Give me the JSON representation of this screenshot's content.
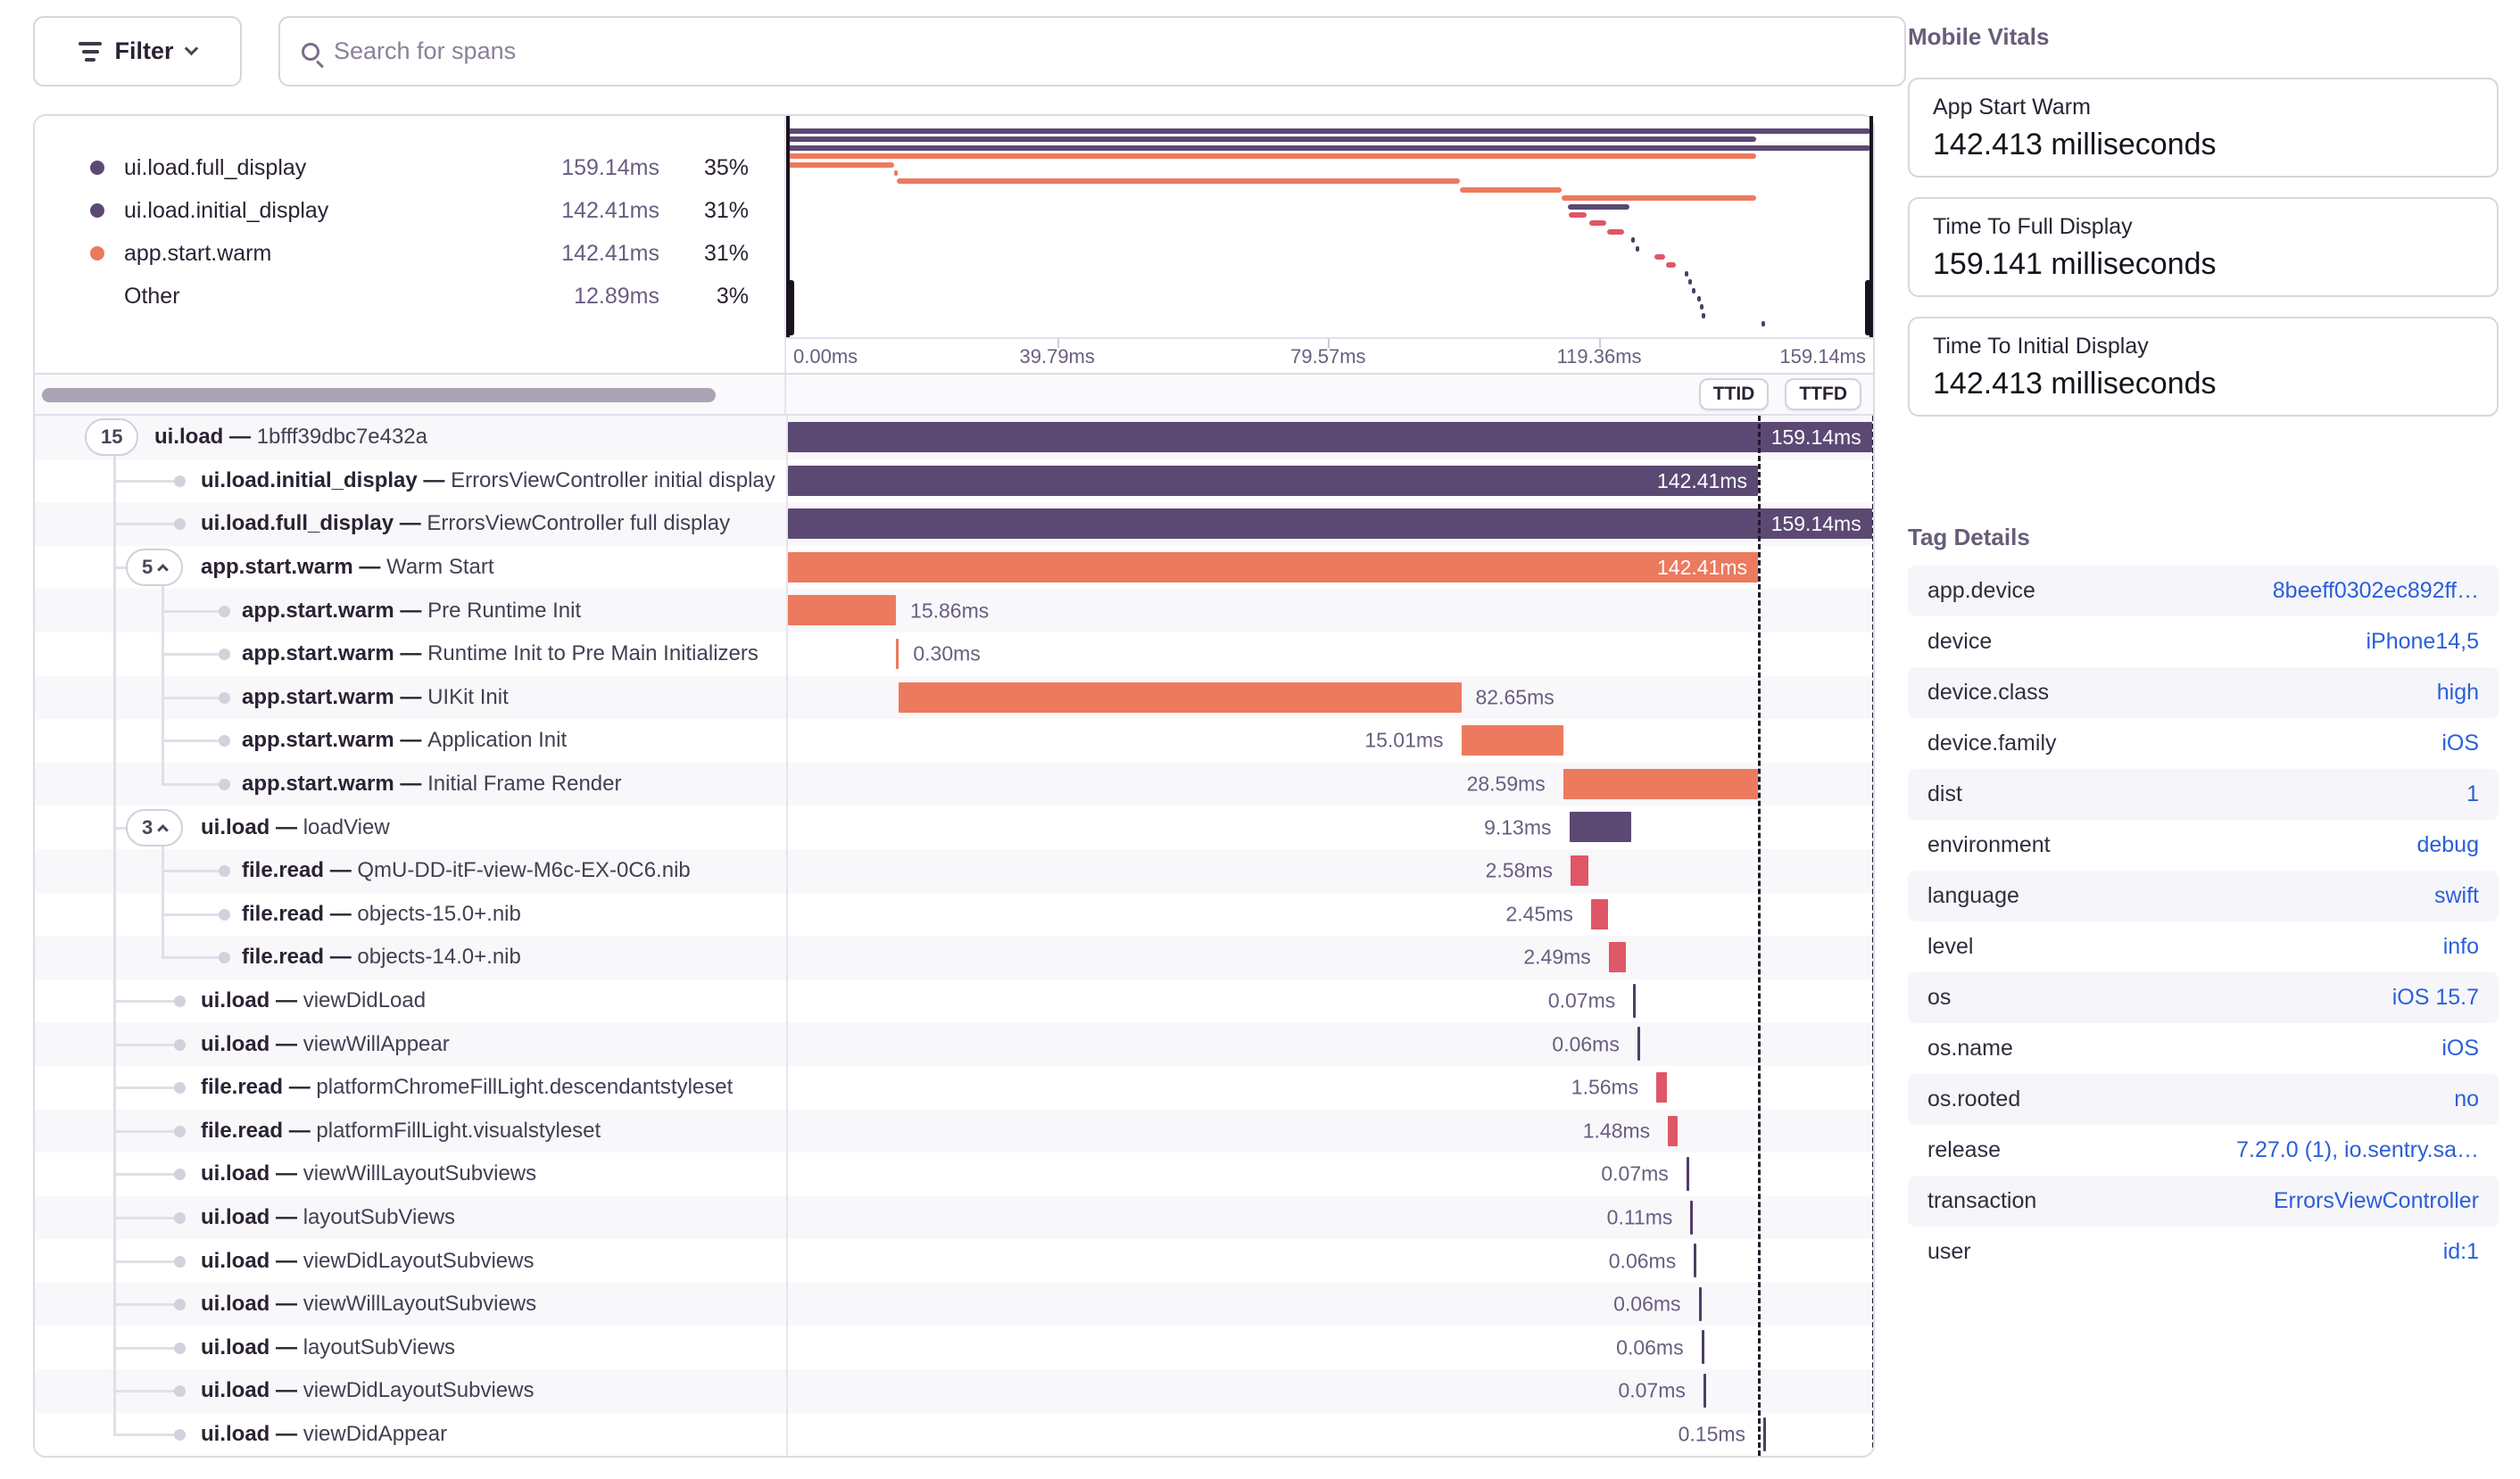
{
  "palette": {
    "purple": "#5b4974",
    "orange": "#ec7a5f",
    "red": "#df5667",
    "mark": "#4f3d66",
    "link_blue": "#2b5fd9"
  },
  "toolbar": {
    "filter_label": "Filter",
    "search_placeholder": "Search for spans"
  },
  "legend": {
    "items": [
      {
        "label": "ui.load.full_display",
        "duration": "159.14ms",
        "percent": "35%",
        "color": "purple"
      },
      {
        "label": "ui.load.initial_display",
        "duration": "142.41ms",
        "percent": "31%",
        "color": "purple"
      },
      {
        "label": "app.start.warm",
        "duration": "142.41ms",
        "percent": "31%",
        "color": "orange"
      },
      {
        "label": "Other",
        "duration": "12.89ms",
        "percent": "3%",
        "color": null
      }
    ]
  },
  "axis": {
    "ticks": [
      {
        "label": "0.00ms",
        "ms": 0
      },
      {
        "label": "39.79ms",
        "ms": 39.79
      },
      {
        "label": "79.57ms",
        "ms": 79.57
      },
      {
        "label": "119.36ms",
        "ms": 119.36
      },
      {
        "label": "159.14ms",
        "ms": 159.14
      }
    ]
  },
  "waterfall": {
    "ttid_label": "TTID",
    "ttfd_label": "TTFD",
    "ttid_ms": 142.41,
    "ttfd_ms": 159.14
  },
  "trace": {
    "separator": "—",
    "spans": [
      {
        "op": "ui.load",
        "desc": "1bfff39dbc7e432a",
        "level": 0,
        "badge": "15",
        "badge_chevron": false,
        "start": 0,
        "dur": 159.14,
        "dur_label": "159.14ms",
        "color": "purple",
        "label_pos": "inside"
      },
      {
        "op": "ui.load.initial_display",
        "desc": "ErrorsViewController initial display",
        "level": 1,
        "start": 0,
        "dur": 142.41,
        "dur_label": "142.41ms",
        "color": "purple",
        "label_pos": "inside"
      },
      {
        "op": "ui.load.full_display",
        "desc": "ErrorsViewController full display",
        "level": 1,
        "start": 0,
        "dur": 159.14,
        "dur_label": "159.14ms",
        "color": "purple",
        "label_pos": "inside"
      },
      {
        "op": "app.start.warm",
        "desc": "Warm Start",
        "level": 1,
        "badge": "5",
        "badge_chevron": true,
        "start": 0,
        "dur": 142.41,
        "dur_label": "142.41ms",
        "color": "orange",
        "label_pos": "inside"
      },
      {
        "op": "app.start.warm",
        "desc": "Pre Runtime Init",
        "level": 2,
        "start": 0,
        "dur": 15.86,
        "dur_label": "15.86ms",
        "color": "orange",
        "label_pos": "right"
      },
      {
        "op": "app.start.warm",
        "desc": "Runtime Init to Pre Main Initializers",
        "level": 2,
        "start": 15.9,
        "dur": 0.3,
        "dur_label": "0.30ms",
        "color": "orange",
        "label_pos": "right"
      },
      {
        "op": "app.start.warm",
        "desc": "UIKit Init",
        "level": 2,
        "start": 16.2,
        "dur": 82.65,
        "dur_label": "82.65ms",
        "color": "orange",
        "label_pos": "right"
      },
      {
        "op": "app.start.warm",
        "desc": "Application Init",
        "level": 2,
        "start": 98.85,
        "dur": 15.01,
        "dur_label": "15.01ms",
        "color": "orange",
        "label_pos": "left"
      },
      {
        "op": "app.start.warm",
        "desc": "Initial Frame Render",
        "level": 2,
        "start": 113.82,
        "dur": 28.59,
        "dur_label": "28.59ms",
        "color": "orange",
        "label_pos": "left"
      },
      {
        "op": "ui.load",
        "desc": "loadView",
        "level": 1,
        "badge": "3",
        "badge_chevron": true,
        "start": 114.7,
        "dur": 9.13,
        "dur_label": "9.13ms",
        "color": "purple",
        "label_pos": "left"
      },
      {
        "op": "file.read",
        "desc": "QmU-DD-itF-view-M6c-EX-0C6.nib",
        "level": 2,
        "start": 114.9,
        "dur": 2.58,
        "dur_label": "2.58ms",
        "color": "red",
        "label_pos": "left"
      },
      {
        "op": "file.read",
        "desc": "objects-15.0+.nib",
        "level": 2,
        "start": 117.9,
        "dur": 2.45,
        "dur_label": "2.45ms",
        "color": "red",
        "label_pos": "left"
      },
      {
        "op": "file.read",
        "desc": "objects-14.0+.nib",
        "level": 2,
        "start": 120.5,
        "dur": 2.49,
        "dur_label": "2.49ms",
        "color": "red",
        "label_pos": "left"
      },
      {
        "op": "ui.load",
        "desc": "viewDidLoad",
        "level": 1,
        "start": 124.1,
        "dur": 0.07,
        "dur_label": "0.07ms",
        "color": "mark",
        "label_pos": "left"
      },
      {
        "op": "ui.load",
        "desc": "viewWillAppear",
        "level": 1,
        "start": 124.7,
        "dur": 0.06,
        "dur_label": "0.06ms",
        "color": "mark",
        "label_pos": "left"
      },
      {
        "op": "file.read",
        "desc": "platformChromeFillLight.descendantstyleset",
        "level": 1,
        "start": 127.5,
        "dur": 1.56,
        "dur_label": "1.56ms",
        "color": "red",
        "label_pos": "left"
      },
      {
        "op": "file.read",
        "desc": "platformFillLight.visualstyleset",
        "level": 1,
        "start": 129.2,
        "dur": 1.48,
        "dur_label": "1.48ms",
        "color": "red",
        "label_pos": "left"
      },
      {
        "op": "ui.load",
        "desc": "viewWillLayoutSubviews",
        "level": 1,
        "start": 131.9,
        "dur": 0.07,
        "dur_label": "0.07ms",
        "color": "mark",
        "label_pos": "left"
      },
      {
        "op": "ui.load",
        "desc": "layoutSubViews",
        "level": 1,
        "start": 132.5,
        "dur": 0.11,
        "dur_label": "0.11ms",
        "color": "mark",
        "label_pos": "left"
      },
      {
        "op": "ui.load",
        "desc": "viewDidLayoutSubviews",
        "level": 1,
        "start": 133.0,
        "dur": 0.06,
        "dur_label": "0.06ms",
        "color": "mark",
        "label_pos": "left"
      },
      {
        "op": "ui.load",
        "desc": "viewWillLayoutSubviews",
        "level": 1,
        "start": 133.7,
        "dur": 0.06,
        "dur_label": "0.06ms",
        "color": "mark",
        "label_pos": "left"
      },
      {
        "op": "ui.load",
        "desc": "layoutSubViews",
        "level": 1,
        "start": 134.1,
        "dur": 0.06,
        "dur_label": "0.06ms",
        "color": "mark",
        "label_pos": "left"
      },
      {
        "op": "ui.load",
        "desc": "viewDidLayoutSubviews",
        "level": 1,
        "start": 134.4,
        "dur": 0.07,
        "dur_label": "0.07ms",
        "color": "mark",
        "label_pos": "left"
      },
      {
        "op": "ui.load",
        "desc": "viewDidAppear",
        "level": 1,
        "start": 143.2,
        "dur": 0.15,
        "dur_label": "0.15ms",
        "color": "mark",
        "label_pos": "left"
      }
    ]
  },
  "vitals": {
    "title": "Mobile Vitals",
    "cards": [
      {
        "label": "App Start Warm",
        "value": "142.413 milliseconds"
      },
      {
        "label": "Time To Full Display",
        "value": "159.141 milliseconds"
      },
      {
        "label": "Time To Initial Display",
        "value": "142.413 milliseconds"
      }
    ]
  },
  "tags": {
    "title": "Tag Details",
    "rows": [
      {
        "key": "app.device",
        "value": "8beeff0302ec892ff…"
      },
      {
        "key": "device",
        "value": "iPhone14,5"
      },
      {
        "key": "device.class",
        "value": "high"
      },
      {
        "key": "device.family",
        "value": "iOS"
      },
      {
        "key": "dist",
        "value": "1"
      },
      {
        "key": "environment",
        "value": "debug"
      },
      {
        "key": "language",
        "value": "swift"
      },
      {
        "key": "level",
        "value": "info"
      },
      {
        "key": "os",
        "value": "iOS 15.7"
      },
      {
        "key": "os.name",
        "value": "iOS"
      },
      {
        "key": "os.rooted",
        "value": "no"
      },
      {
        "key": "release",
        "value": "7.27.0 (1), io.sentry.sa…"
      },
      {
        "key": "transaction",
        "value": "ErrorsViewController"
      },
      {
        "key": "user",
        "value": "id:1"
      }
    ]
  }
}
